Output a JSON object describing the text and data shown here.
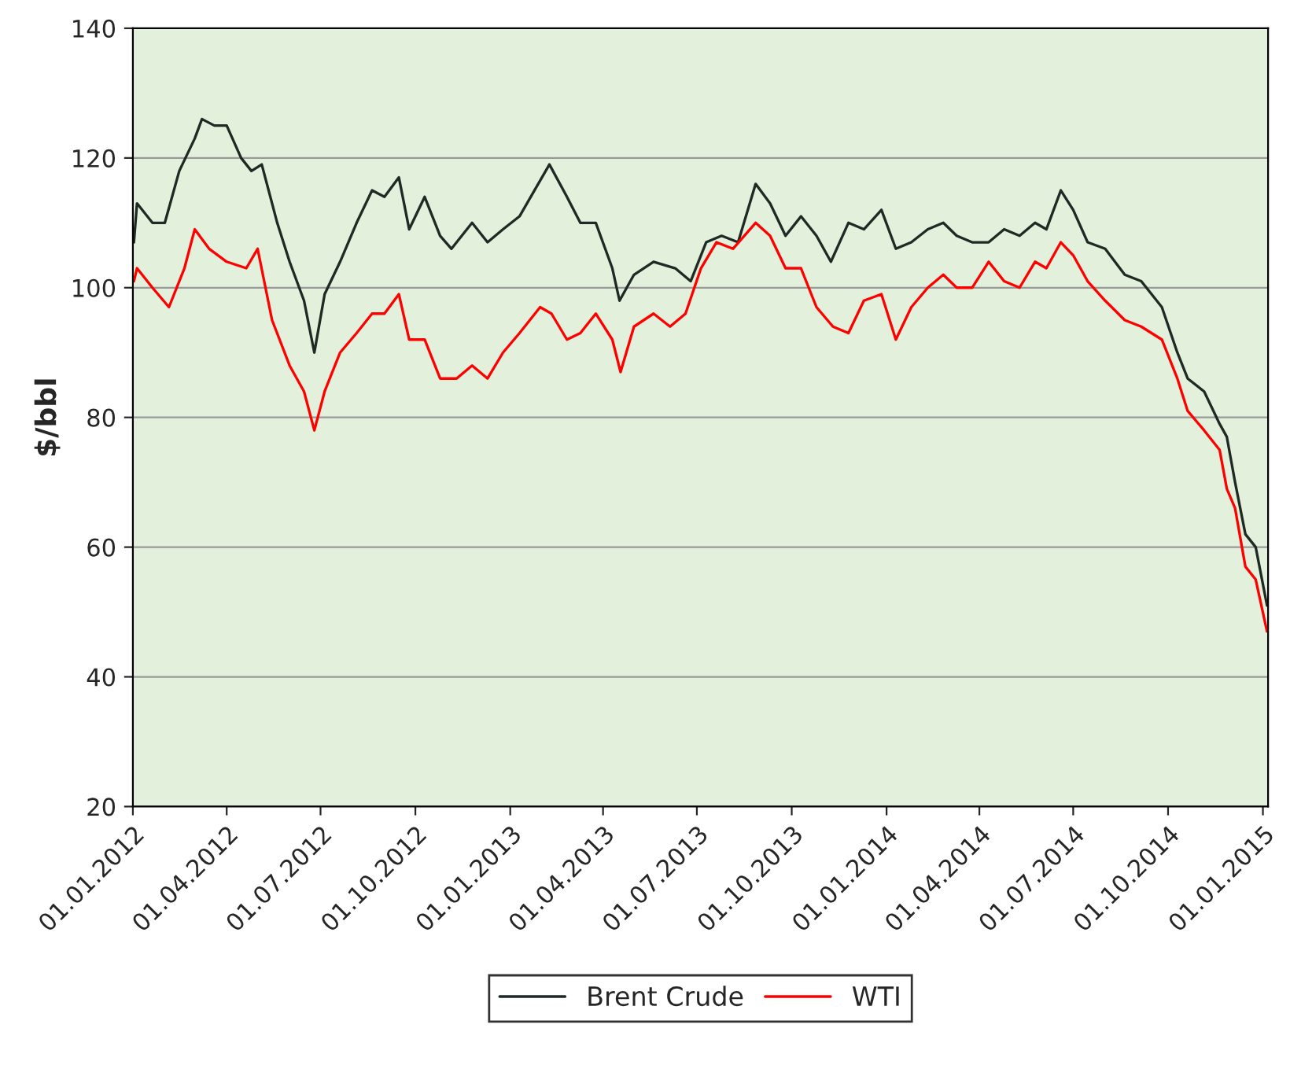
{
  "chart_data": {
    "type": "line",
    "ylabel": "$/bbl",
    "legend": "bottom",
    "grid": "y",
    "ylim": [
      20,
      140
    ],
    "yticks": [
      20,
      40,
      60,
      80,
      100,
      120,
      140
    ],
    "xlim": [
      "2012-01-01",
      "2015-01-06"
    ],
    "xticks": [
      {
        "value": "2012-01-01",
        "label": "01.01.2012"
      },
      {
        "value": "2012-04-01",
        "label": "01.04.2012"
      },
      {
        "value": "2012-07-01",
        "label": "01.07.2012"
      },
      {
        "value": "2012-10-01",
        "label": "01.10.2012"
      },
      {
        "value": "2013-01-01",
        "label": "01.01.2013"
      },
      {
        "value": "2013-04-01",
        "label": "01.04.2013"
      },
      {
        "value": "2013-07-01",
        "label": "01.07.2013"
      },
      {
        "value": "2013-10-01",
        "label": "01.10.2013"
      },
      {
        "value": "2014-01-01",
        "label": "01.01.2014"
      },
      {
        "value": "2014-04-01",
        "label": "01.04.2014"
      },
      {
        "value": "2014-07-01",
        "label": "01.07.2014"
      },
      {
        "value": "2014-10-01",
        "label": "01.10.2014"
      },
      {
        "value": "2015-01-01",
        "label": "01.01.2015"
      }
    ],
    "series": [
      {
        "name": "Brent Crude",
        "color": "#1f2a24",
        "x": [
          "2012-01-02",
          "2012-01-05",
          "2012-01-20",
          "2012-02-01",
          "2012-02-15",
          "2012-03-01",
          "2012-03-08",
          "2012-03-20",
          "2012-04-01",
          "2012-04-15",
          "2012-04-25",
          "2012-05-05",
          "2012-05-20",
          "2012-06-01",
          "2012-06-15",
          "2012-06-25",
          "2012-07-05",
          "2012-07-20",
          "2012-08-05",
          "2012-08-20",
          "2012-09-01",
          "2012-09-15",
          "2012-09-25",
          "2012-10-10",
          "2012-10-25",
          "2012-11-05",
          "2012-11-25",
          "2012-12-10",
          "2012-12-25",
          "2013-01-10",
          "2013-02-08",
          "2013-02-25",
          "2013-03-10",
          "2013-03-25",
          "2013-04-10",
          "2013-04-17",
          "2013-05-01",
          "2013-05-20",
          "2013-06-10",
          "2013-06-25",
          "2013-07-10",
          "2013-07-25",
          "2013-08-10",
          "2013-08-27",
          "2013-09-10",
          "2013-09-25",
          "2013-10-10",
          "2013-10-25",
          "2013-11-08",
          "2013-11-25",
          "2013-12-10",
          "2013-12-27",
          "2014-01-10",
          "2014-01-25",
          "2014-02-10",
          "2014-02-25",
          "2014-03-10",
          "2014-03-25",
          "2014-04-10",
          "2014-04-25",
          "2014-05-10",
          "2014-05-25",
          "2014-06-05",
          "2014-06-19",
          "2014-07-01",
          "2014-07-15",
          "2014-08-01",
          "2014-08-20",
          "2014-09-05",
          "2014-09-25",
          "2014-10-10",
          "2014-10-20",
          "2014-11-05",
          "2014-11-20",
          "2014-11-27",
          "2014-12-05",
          "2014-12-15",
          "2014-12-25",
          "2015-01-05"
        ],
        "values": [
          107,
          113,
          110,
          110,
          118,
          123,
          126,
          125,
          125,
          120,
          118,
          119,
          110,
          104,
          98,
          90,
          99,
          104,
          110,
          115,
          114,
          117,
          109,
          114,
          108,
          106,
          110,
          107,
          109,
          111,
          119,
          114,
          110,
          110,
          103,
          98,
          102,
          104,
          103,
          101,
          107,
          108,
          107,
          116,
          113,
          108,
          111,
          108,
          104,
          110,
          109,
          112,
          106,
          107,
          109,
          110,
          108,
          107,
          107,
          109,
          108,
          110,
          109,
          115,
          112,
          107,
          106,
          102,
          101,
          97,
          90,
          86,
          84,
          79,
          77,
          70,
          62,
          60,
          51
        ]
      },
      {
        "name": "WTI",
        "color": "#ff0000",
        "x": [
          "2012-01-02",
          "2012-01-05",
          "2012-01-20",
          "2012-02-05",
          "2012-02-20",
          "2012-03-01",
          "2012-03-15",
          "2012-04-01",
          "2012-04-20",
          "2012-05-01",
          "2012-05-15",
          "2012-06-01",
          "2012-06-15",
          "2012-06-25",
          "2012-07-05",
          "2012-07-20",
          "2012-08-05",
          "2012-08-20",
          "2012-09-01",
          "2012-09-15",
          "2012-09-25",
          "2012-10-10",
          "2012-10-25",
          "2012-11-10",
          "2012-11-25",
          "2012-12-10",
          "2012-12-25",
          "2013-01-10",
          "2013-01-30",
          "2013-02-10",
          "2013-02-25",
          "2013-03-10",
          "2013-03-25",
          "2013-04-10",
          "2013-04-18",
          "2013-05-01",
          "2013-05-20",
          "2013-06-05",
          "2013-06-20",
          "2013-07-05",
          "2013-07-20",
          "2013-08-05",
          "2013-08-27",
          "2013-09-10",
          "2013-09-25",
          "2013-10-10",
          "2013-10-25",
          "2013-11-10",
          "2013-11-25",
          "2013-12-10",
          "2013-12-27",
          "2014-01-10",
          "2014-01-25",
          "2014-02-10",
          "2014-02-25",
          "2014-03-10",
          "2014-03-25",
          "2014-04-10",
          "2014-04-25",
          "2014-05-10",
          "2014-05-25",
          "2014-06-05",
          "2014-06-19",
          "2014-07-01",
          "2014-07-15",
          "2014-08-01",
          "2014-08-20",
          "2014-09-05",
          "2014-09-25",
          "2014-10-10",
          "2014-10-20",
          "2014-11-05",
          "2014-11-20",
          "2014-11-27",
          "2014-12-05",
          "2014-12-15",
          "2014-12-25",
          "2015-01-05"
        ],
        "values": [
          101,
          103,
          100,
          97,
          103,
          109,
          106,
          104,
          103,
          106,
          95,
          88,
          84,
          78,
          84,
          90,
          93,
          96,
          96,
          99,
          92,
          92,
          86,
          86,
          88,
          86,
          90,
          93,
          97,
          96,
          92,
          93,
          96,
          92,
          87,
          94,
          96,
          94,
          96,
          103,
          107,
          106,
          110,
          108,
          103,
          103,
          97,
          94,
          93,
          98,
          99,
          92,
          97,
          100,
          102,
          100,
          100,
          104,
          101,
          100,
          104,
          103,
          107,
          105,
          101,
          98,
          95,
          94,
          92,
          86,
          81,
          78,
          75,
          69,
          66,
          57,
          55,
          47
        ]
      }
    ]
  }
}
